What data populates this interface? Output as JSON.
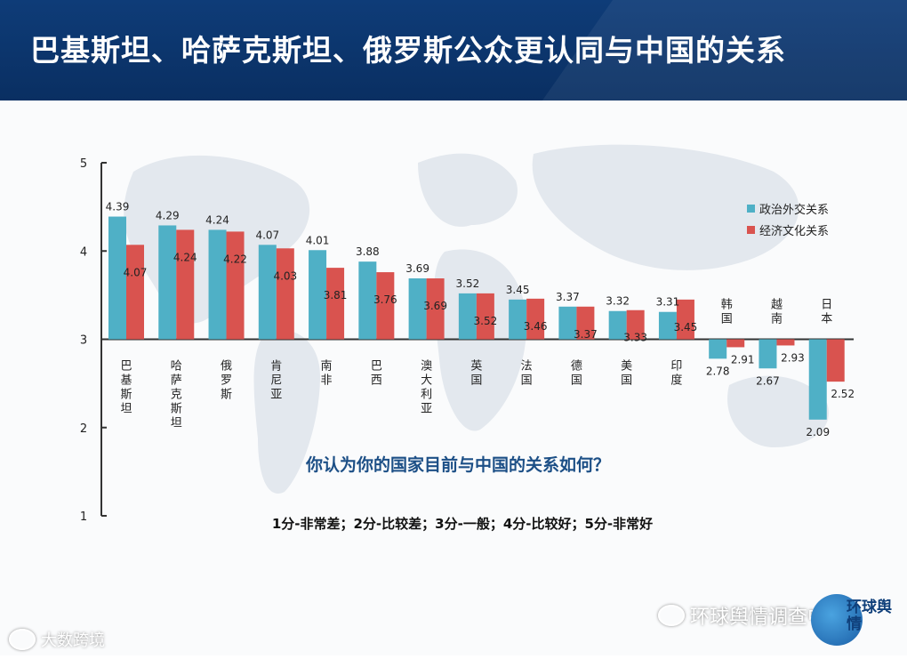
{
  "header": {
    "title": "巴基斯坦、哈萨克斯坦、俄罗斯公众更认同与中国的关系"
  },
  "question": "你认为你的国家目前与中国的关系如何？",
  "scale_note": "1分-非常差；2分-比较差；3分-一般；4分-比较好；5分-非常好",
  "watermarks": {
    "left": "大数跨境",
    "right": "环球舆情调查中心",
    "logo": "环球舆情"
  },
  "colors": {
    "header": "#0e3c78",
    "political": "#4fb0c6",
    "economic": "#d9534f"
  },
  "chart_data": {
    "type": "bar",
    "ylim": [
      1,
      5
    ],
    "baseline": 3,
    "yticks": [
      "1",
      "2",
      "3",
      "4",
      "5"
    ],
    "legend_position": "right",
    "categories": [
      {
        "label": [
          "巴",
          "基",
          "斯",
          "坦"
        ]
      },
      {
        "label": [
          "哈",
          "萨",
          "克",
          "斯",
          "坦"
        ]
      },
      {
        "label": [
          "俄",
          "罗",
          "斯"
        ]
      },
      {
        "label": [
          "肯",
          "尼",
          "亚"
        ]
      },
      {
        "label": [
          "南",
          "非"
        ]
      },
      {
        "label": [
          "巴",
          "西"
        ]
      },
      {
        "label": [
          "澳",
          "大",
          "利",
          "亚"
        ]
      },
      {
        "label": [
          "英",
          "国"
        ]
      },
      {
        "label": [
          "法",
          "国"
        ]
      },
      {
        "label": [
          "德",
          "国"
        ]
      },
      {
        "label": [
          "美",
          "国"
        ]
      },
      {
        "label": [
          "印",
          "度"
        ]
      },
      {
        "label": [
          "韩",
          "国"
        ]
      },
      {
        "label": [
          "越",
          "南"
        ]
      },
      {
        "label": [
          "日",
          "本"
        ]
      }
    ],
    "series": [
      {
        "name": "政治外交关系",
        "color": "#4fb0c6",
        "values": [
          4.39,
          4.29,
          4.24,
          4.07,
          4.01,
          3.88,
          3.69,
          3.52,
          3.45,
          3.37,
          3.32,
          3.31,
          2.78,
          2.67,
          2.09
        ],
        "labels": [
          "4.39",
          "4.29",
          "4.24",
          "4.07",
          "4.01",
          "3.88",
          "3.69",
          "3.52",
          "3.45",
          "3.37",
          "3.32",
          "3.31",
          "2.78",
          "2.67",
          "2.09"
        ]
      },
      {
        "name": "经济文化关系",
        "color": "#d9534f",
        "values": [
          4.07,
          4.24,
          4.22,
          4.03,
          3.81,
          3.76,
          3.69,
          3.52,
          3.46,
          3.37,
          3.33,
          3.45,
          2.91,
          2.93,
          2.52
        ],
        "labels": [
          "4.07",
          "4.24",
          "4.22",
          "4.03",
          "3.81",
          "3.76",
          "3.69",
          "3.52",
          "3.46",
          "3.37",
          "3.33",
          "3.45",
          "2.91",
          "2.93",
          "2.52"
        ]
      }
    ]
  }
}
